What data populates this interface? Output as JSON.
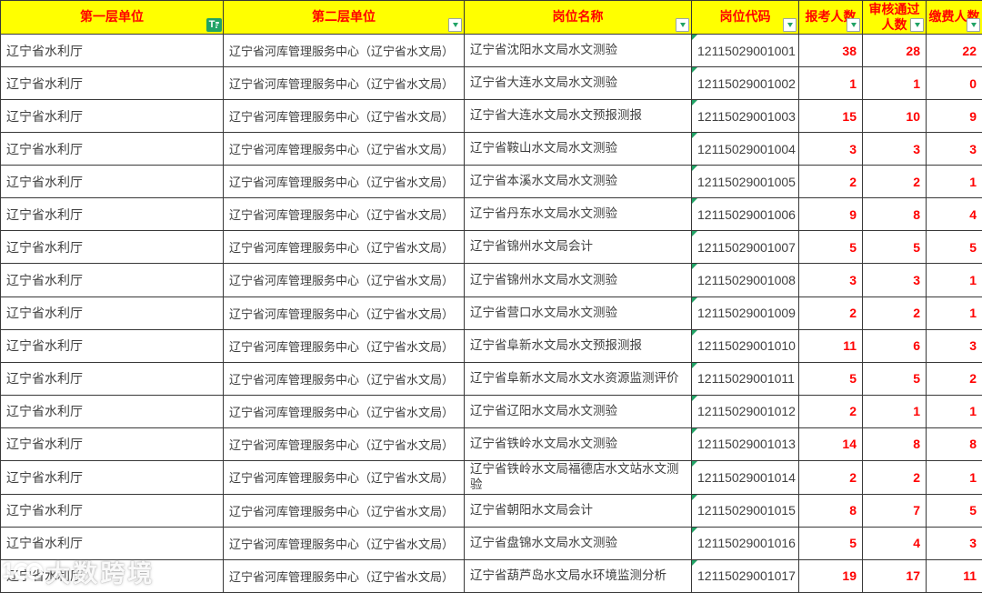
{
  "table": {
    "columns": [
      {
        "label": "第一层单位",
        "filter": "applied"
      },
      {
        "label": "第二层单位",
        "filter": "dropdown"
      },
      {
        "label": "岗位名称",
        "filter": "dropdown"
      },
      {
        "label": "岗位代码",
        "filter": "dropdown"
      },
      {
        "label": "报考人数",
        "filter": "dropdown"
      },
      {
        "label": "审核通过人数",
        "filter": "dropdown"
      },
      {
        "label": "缴费人数",
        "filter": "dropdown"
      }
    ],
    "rows": [
      {
        "unit1": "辽宁省水利厅",
        "unit2": "辽宁省河库管理服务中心（辽宁省水文局）",
        "position": "辽宁省沈阳水文局水文测验",
        "code": "12115029001001",
        "applicants": "38",
        "approved": "28",
        "paid": "22"
      },
      {
        "unit1": "辽宁省水利厅",
        "unit2": "辽宁省河库管理服务中心（辽宁省水文局）",
        "position": "辽宁省大连水文局水文测验",
        "code": "12115029001002",
        "applicants": "1",
        "approved": "1",
        "paid": "0"
      },
      {
        "unit1": "辽宁省水利厅",
        "unit2": "辽宁省河库管理服务中心（辽宁省水文局）",
        "position": "辽宁省大连水文局水文预报测报",
        "code": "12115029001003",
        "applicants": "15",
        "approved": "10",
        "paid": "9"
      },
      {
        "unit1": "辽宁省水利厅",
        "unit2": "辽宁省河库管理服务中心（辽宁省水文局）",
        "position": "辽宁省鞍山水文局水文测验",
        "code": "12115029001004",
        "applicants": "3",
        "approved": "3",
        "paid": "3"
      },
      {
        "unit1": "辽宁省水利厅",
        "unit2": "辽宁省河库管理服务中心（辽宁省水文局）",
        "position": "辽宁省本溪水文局水文测验",
        "code": "12115029001005",
        "applicants": "2",
        "approved": "2",
        "paid": "1"
      },
      {
        "unit1": "辽宁省水利厅",
        "unit2": "辽宁省河库管理服务中心（辽宁省水文局）",
        "position": "辽宁省丹东水文局水文测验",
        "code": "12115029001006",
        "applicants": "9",
        "approved": "8",
        "paid": "4"
      },
      {
        "unit1": "辽宁省水利厅",
        "unit2": "辽宁省河库管理服务中心（辽宁省水文局）",
        "position": "辽宁省锦州水文局会计",
        "code": "12115029001007",
        "applicants": "5",
        "approved": "5",
        "paid": "5"
      },
      {
        "unit1": "辽宁省水利厅",
        "unit2": "辽宁省河库管理服务中心（辽宁省水文局）",
        "position": "辽宁省锦州水文局水文测验",
        "code": "12115029001008",
        "applicants": "3",
        "approved": "3",
        "paid": "1"
      },
      {
        "unit1": "辽宁省水利厅",
        "unit2": "辽宁省河库管理服务中心（辽宁省水文局）",
        "position": "辽宁省营口水文局水文测验",
        "code": "12115029001009",
        "applicants": "2",
        "approved": "2",
        "paid": "1"
      },
      {
        "unit1": "辽宁省水利厅",
        "unit2": "辽宁省河库管理服务中心（辽宁省水文局）",
        "position": "辽宁省阜新水文局水文预报测报",
        "code": "12115029001010",
        "applicants": "11",
        "approved": "6",
        "paid": "3"
      },
      {
        "unit1": "辽宁省水利厅",
        "unit2": "辽宁省河库管理服务中心（辽宁省水文局）",
        "position": "辽宁省阜新水文局水文水资源监测评价",
        "code": "12115029001011",
        "applicants": "5",
        "approved": "5",
        "paid": "2"
      },
      {
        "unit1": "辽宁省水利厅",
        "unit2": "辽宁省河库管理服务中心（辽宁省水文局）",
        "position": "辽宁省辽阳水文局水文测验",
        "code": "12115029001012",
        "applicants": "2",
        "approved": "1",
        "paid": "1"
      },
      {
        "unit1": "辽宁省水利厅",
        "unit2": "辽宁省河库管理服务中心（辽宁省水文局）",
        "position": "辽宁省铁岭水文局水文测验",
        "code": "12115029001013",
        "applicants": "14",
        "approved": "8",
        "paid": "8"
      },
      {
        "unit1": "辽宁省水利厅",
        "unit2": "辽宁省河库管理服务中心（辽宁省水文局）",
        "position": "辽宁省铁岭水文局福德店水文站水文测验",
        "code": "12115029001014",
        "applicants": "2",
        "approved": "2",
        "paid": "1"
      },
      {
        "unit1": "辽宁省水利厅",
        "unit2": "辽宁省河库管理服务中心（辽宁省水文局）",
        "position": "辽宁省朝阳水文局会计",
        "code": "12115029001015",
        "applicants": "8",
        "approved": "7",
        "paid": "5"
      },
      {
        "unit1": "辽宁省水利厅",
        "unit2": "辽宁省河库管理服务中心（辽宁省水文局）",
        "position": "辽宁省盘锦水文局水文测验",
        "code": "12115029001016",
        "applicants": "5",
        "approved": "4",
        "paid": "3"
      },
      {
        "unit1": "辽宁省水利厅",
        "unit2": "辽宁省河库管理服务中心（辽宁省水文局）",
        "position": "辽宁省葫芦岛水文局水环境监测分析",
        "code": "12115029001017",
        "applicants": "19",
        "approved": "17",
        "paid": "11"
      }
    ]
  },
  "icons": {
    "filter_applied_glyph": "T",
    "watermark_logo_digit": "1"
  },
  "watermark": {
    "text": "大数跨境"
  },
  "colors": {
    "header_bg": "#ffff00",
    "header_text": "#ff0000",
    "number_text": "#ff0000",
    "cell_text": "#3f3f3f",
    "grid_border": "#383838",
    "filter_green": "#21a366"
  }
}
